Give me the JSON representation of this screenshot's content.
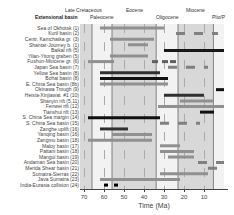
{
  "chart_data": {
    "type": "timeline",
    "xlabel": "Time (Ma)",
    "annotation": "Extensional basin",
    "xlim": [
      72,
      -2
    ],
    "xticks": [
      70,
      60,
      50,
      40,
      30,
      20,
      10
    ],
    "grid": true,
    "epoch_boundaries": [
      75,
      66,
      56,
      33.9,
      23,
      5.3,
      0
    ],
    "epoch_colors": [
      "#d8d8d8",
      "#f2f2f2",
      "#d8d8d8",
      "#f2f2f2",
      "#d8d8d8",
      "#f2f2f2"
    ],
    "epoch_labels": [
      {
        "value": 70.5,
        "label": "Late Cretaceous"
      },
      {
        "value": 61,
        "label": "Paleocene"
      },
      {
        "value": 44.95,
        "label": "Eocene"
      },
      {
        "value": 28.45,
        "label": "Oligocene"
      },
      {
        "value": 14.15,
        "label": "Miocene"
      },
      {
        "value": 2.65,
        "label": "Plio/P"
      }
    ],
    "categories": [
      "Sea of Okhotsk (1)",
      "Kuril basin (2)",
      "Centr. Kamchatka gr. (3)",
      "Shantar-Journey b. (1)",
      "Baikal rift (5)",
      "Yilan-Yitong graben (5)",
      "Fushun-Miocene gr. (6)",
      "Japan Sea basin (7)",
      "Yellow Sea basin (8)",
      "Bohai basin (8)",
      "E. China Sea basin (8b)",
      "Okinawa Trough (9)",
      "Heixia-Xinjiawat. #1 (10)",
      "Shanyin rift (5,11)",
      "Fenwei rift (12)",
      "Tianshui rift (13)",
      "S. China Sea margin (14)",
      "S. China Sea basin (15)",
      "Zanghe uplift (16)",
      "Yanqing basin (16)",
      "Zangmu basin (18)",
      "Maloy basin (17)",
      "Pattani basin (18)",
      "Mangui basin (19)",
      "Andaman Sea basin (20)",
      "Merida Shear basin (21)",
      "Sumatra-Sierras (22)",
      "Java Sumatra (23)",
      "India-Eurasia collision (24)"
    ],
    "bars": [
      [
        {
          "start": 62,
          "end": 30,
          "color": "#909090",
          "line_style": "solid"
        }
      ],
      [
        {
          "start": 24,
          "end": 3,
          "color": "#808080",
          "line_style": "dashed"
        }
      ],
      [
        {
          "start": 57,
          "end": 35,
          "color": "#909090",
          "line_style": "solid"
        }
      ],
      [
        {
          "start": 48,
          "end": 38,
          "color": "#909090",
          "line_style": "solid"
        }
      ],
      [
        {
          "start": 30,
          "end": 0,
          "color": "#181818",
          "line_style": "solid"
        }
      ],
      [
        {
          "start": 57,
          "end": 38,
          "color": "#909090",
          "line_style": "solid"
        }
      ],
      [
        {
          "start": 68,
          "end": 55,
          "color": "#909090",
          "line_style": "solid"
        },
        {
          "start": 36,
          "end": 33,
          "color": "#606060",
          "line_style": "solid"
        },
        {
          "start": 31,
          "end": 28,
          "color": "#606060",
          "line_style": "solid"
        },
        {
          "start": 27,
          "end": 24,
          "color": "#606060",
          "line_style": "solid"
        }
      ],
      [
        {
          "start": 28,
          "end": 8,
          "color": "#808080",
          "line_style": "dashed"
        }
      ],
      [
        {
          "start": 62,
          "end": 32,
          "color": "#303030",
          "line_style": "solid"
        }
      ],
      [
        {
          "start": 62,
          "end": 28,
          "color": "#101010",
          "line_style": "solid"
        }
      ],
      [
        {
          "start": 62,
          "end": 28,
          "color": "#909090",
          "line_style": "solid"
        }
      ],
      [
        {
          "start": 4,
          "end": 0,
          "color": "#101010",
          "line_style": "solid"
        }
      ],
      [
        {
          "start": 30,
          "end": 10,
          "color": "#303030",
          "line_style": "solid"
        }
      ],
      [
        {
          "start": 22,
          "end": 5,
          "color": "#909090",
          "line_style": "solid"
        }
      ],
      [
        {
          "start": 33,
          "end": 0,
          "color": "#909090",
          "line_style": "solid"
        }
      ],
      [
        {
          "start": 12,
          "end": 5,
          "color": "#101010",
          "line_style": "solid"
        }
      ],
      [
        {
          "start": 68,
          "end": 32,
          "color": "#101010",
          "line_style": "solid"
        }
      ],
      [
        {
          "start": 32,
          "end": 12,
          "color": "#808080",
          "line_style": "dashed"
        }
      ],
      [
        {
          "start": 62,
          "end": 48,
          "color": "#303030",
          "line_style": "solid"
        }
      ],
      [
        {
          "start": 56,
          "end": 36,
          "color": "#909090",
          "line_style": "solid"
        }
      ],
      [
        {
          "start": 68,
          "end": 36,
          "color": "#909090",
          "line_style": "solid"
        }
      ],
      [
        {
          "start": 32,
          "end": 22,
          "color": "#909090",
          "line_style": "solid"
        }
      ],
      [
        {
          "start": 32,
          "end": 15,
          "color": "#909090",
          "line_style": "solid"
        }
      ],
      [
        {
          "start": 28,
          "end": 15,
          "color": "#909090",
          "line_style": "solid"
        }
      ],
      [
        {
          "start": 13,
          "end": 0,
          "color": "#808080",
          "line_style": "dashed"
        }
      ],
      [
        {
          "start": 8,
          "end": 2,
          "color": "#808080",
          "line_style": "dashed"
        }
      ],
      [
        {
          "start": 32,
          "end": 8,
          "color": "#909090",
          "line_style": "solid"
        }
      ],
      [
        {
          "start": 62,
          "end": 22,
          "color": "#909090",
          "line_style": "solid"
        }
      ],
      [
        {
          "start": 60,
          "end": 58,
          "color": "#000000",
          "line_style": "solid"
        },
        {
          "start": 55,
          "end": 53,
          "color": "#000000",
          "line_style": "solid"
        }
      ]
    ]
  }
}
